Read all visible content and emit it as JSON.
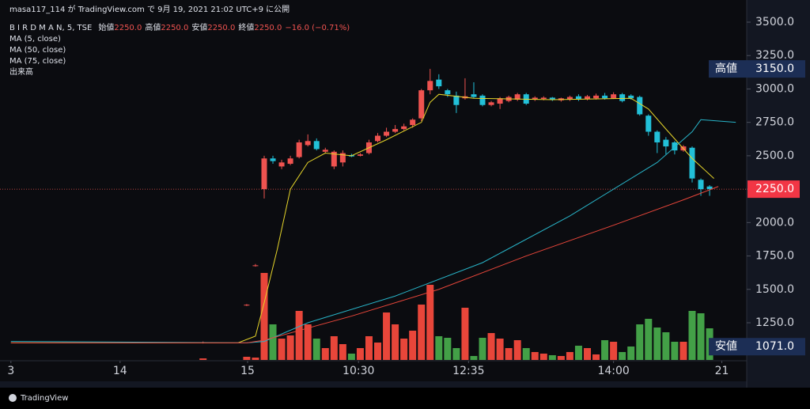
{
  "published": "masa117_114 が TradingView.com で 9月 19, 2021 21:02 UTC+9 に公開",
  "legend": {
    "symbol": "B I R D M A N, 5, TSE",
    "items": [
      {
        "label": "始値",
        "value": "2250.0"
      },
      {
        "label": "高値",
        "value": "2250.0"
      },
      {
        "label": "安値",
        "value": "2250.0"
      },
      {
        "label": "終値",
        "value": "2250.0"
      }
    ],
    "change": "−16.0 (−0.71%)",
    "indicators": [
      "MA (5, close)",
      "MA (50, close)",
      "MA (75, close)",
      "出来高"
    ]
  },
  "footer": "TradingView",
  "chart_data": {
    "type": "candlestick",
    "up_color": "#ef5350",
    "down_color": "#22c0d8",
    "volume_up_color": "#e8463a",
    "volume_down_color": "#43a047",
    "candles": {
      "x": [
        -7,
        -2,
        -1,
        0,
        1,
        2,
        3,
        4,
        5,
        6,
        7,
        8,
        9,
        10,
        11,
        12,
        13,
        14,
        15,
        16,
        17,
        18,
        19,
        20,
        21,
        22,
        23,
        24,
        25,
        26,
        27,
        28,
        29,
        30,
        31,
        32,
        33,
        34,
        35,
        36,
        37,
        38,
        39,
        40,
        41,
        42,
        43,
        44,
        45,
        46,
        47,
        48,
        49,
        50,
        51
      ],
      "open": [
        1100,
        1380,
        1675,
        2250,
        2480,
        2420,
        2440,
        2490,
        2580,
        2610,
        2530,
        2420,
        2450,
        2505,
        2500,
        2520,
        2610,
        2650,
        2680,
        2700,
        2730,
        2780,
        2990,
        3070,
        2990,
        2950,
        2930,
        2960,
        2950,
        2880,
        2890,
        2910,
        2920,
        2960,
        2920,
        2925,
        2935,
        2915,
        2920,
        2945,
        2925,
        2930,
        2950,
        2930,
        2960,
        2950,
        2940,
        2800,
        2680,
        2620,
        2600,
        2540,
        2560,
        2320,
        2270
      ],
      "high": [
        1110,
        1390,
        1690,
        2500,
        2500,
        2470,
        2500,
        2620,
        2660,
        2630,
        2560,
        2540,
        2540,
        2515,
        2520,
        2620,
        2670,
        2710,
        2730,
        2740,
        2780,
        3000,
        3150,
        3110,
        3000,
        2980,
        3080,
        3050,
        2960,
        2910,
        2940,
        2950,
        2970,
        2970,
        2945,
        2945,
        2940,
        2935,
        2950,
        2960,
        2955,
        2965,
        2970,
        2975,
        2970,
        2960,
        2950,
        2810,
        2690,
        2640,
        2610,
        2580,
        2570,
        2330,
        2280
      ],
      "low": [
        1095,
        1375,
        1670,
        2180,
        2440,
        2400,
        2430,
        2480,
        2570,
        2540,
        2520,
        2400,
        2420,
        2490,
        2495,
        2510,
        2600,
        2640,
        2670,
        2690,
        2710,
        2760,
        2960,
        3000,
        2940,
        2820,
        2920,
        2930,
        2870,
        2870,
        2850,
        2900,
        2910,
        2880,
        2910,
        2915,
        2910,
        2905,
        2910,
        2910,
        2915,
        2920,
        2920,
        2925,
        2900,
        2920,
        2800,
        2650,
        2520,
        2510,
        2510,
        2530,
        2300,
        2200,
        2200
      ],
      "close": [
        1105,
        1385,
        1680,
        2480,
        2460,
        2450,
        2480,
        2600,
        2610,
        2550,
        2545,
        2530,
        2520,
        2495,
        2510,
        2600,
        2650,
        2680,
        2700,
        2720,
        2770,
        2990,
        3060,
        3020,
        2960,
        2880,
        2945,
        2940,
        2880,
        2900,
        2930,
        2940,
        2960,
        2890,
        2935,
        2935,
        2920,
        2930,
        2940,
        2920,
        2945,
        2950,
        2930,
        2960,
        2910,
        2930,
        2810,
        2680,
        2600,
        2570,
        2540,
        2570,
        2330,
        2250,
        2250
      ],
      "volume": [
        2,
        4,
        3,
        110,
        45,
        27,
        31,
        62,
        45,
        27,
        15,
        30,
        20,
        8,
        15,
        30,
        22,
        60,
        45,
        27,
        37,
        70,
        95,
        30,
        28,
        15,
        66,
        5,
        28,
        34,
        27,
        15,
        25,
        15,
        10,
        8,
        6,
        5,
        10,
        18,
        15,
        7,
        25,
        23,
        10,
        17,
        45,
        52,
        41,
        35,
        23,
        23,
        62,
        59,
        40
      ]
    },
    "series": [
      {
        "name": "MA (5, close)",
        "color": "#e6d52a",
        "x": [
          -29,
          -3,
          -1,
          0,
          1.5,
          3,
          5,
          7,
          10,
          14,
          18,
          19,
          20,
          24,
          33,
          42,
          44,
          46,
          49,
          51.5
        ],
        "values": [
          1100,
          1100,
          1150,
          1400,
          1800,
          2250,
          2450,
          2520,
          2500,
          2620,
          2750,
          2900,
          2960,
          2930,
          2920,
          2930,
          2850,
          2700,
          2480,
          2330
        ]
      },
      {
        "name": "MA (50, close)",
        "color": "#28b4c8",
        "x": [
          -29,
          -2,
          0,
          5,
          15,
          25,
          35,
          45,
          49,
          50,
          54
        ],
        "values": [
          1110,
          1100,
          1110,
          1250,
          1450,
          1700,
          2050,
          2450,
          2680,
          2770,
          2750
        ]
      },
      {
        "name": "MA (75, close)",
        "color": "#e8463a",
        "x": [
          -29,
          -2,
          0,
          10,
          20,
          30,
          40,
          48,
          52
        ],
        "values": [
          1100,
          1100,
          1120,
          1300,
          1500,
          1750,
          1980,
          2170,
          2270
        ]
      }
    ],
    "xlim": [
      -30.25,
      55.25
    ],
    "xticks": [
      {
        "value": -29,
        "label": "3"
      },
      {
        "value": -16.5,
        "label": "14"
      },
      {
        "value": -1.9,
        "label": "15"
      },
      {
        "value": 10.8,
        "label": "10:30"
      },
      {
        "value": 23.4,
        "label": "12:35"
      },
      {
        "value": 40,
        "label": "14:00"
      },
      {
        "value": 52.4,
        "label": "21"
      }
    ],
    "ylim": [
      971.7,
      3665.8
    ],
    "yticks": [
      {
        "value": 1250,
        "label": "1250.0"
      },
      {
        "value": 1500,
        "label": "1500.0"
      },
      {
        "value": 1750,
        "label": "1750.0"
      },
      {
        "value": 2000,
        "label": "2000.0"
      },
      {
        "value": 2250,
        "label": "2250.0"
      },
      {
        "value": 2500,
        "label": "2500.0"
      },
      {
        "value": 2750,
        "label": "2750.0"
      },
      {
        "value": 3000,
        "label": "3000.0"
      },
      {
        "value": 3250,
        "label": "3250.0"
      },
      {
        "value": 3500,
        "label": "3500.0"
      }
    ],
    "volume_lim": [
      0,
      130
    ],
    "last_price": {
      "value": 2250,
      "label": "2250.0"
    },
    "high_marker": {
      "name": "高値",
      "value": 3150,
      "label": "3150.0"
    },
    "low_marker": {
      "name": "安値",
      "value": 1071,
      "label": "1071.0"
    }
  }
}
